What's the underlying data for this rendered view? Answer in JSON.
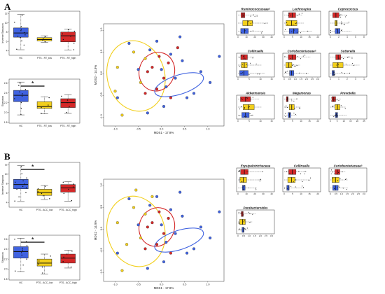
{
  "panels": [
    {
      "letter": "A",
      "groups": [
        "HC",
        "PTS - RT_low",
        "PTS - RT_high"
      ],
      "alpha_plots": [
        {
          "ylabel": "Inverse Simpson",
          "ticks": [
            "12",
            "10",
            "8",
            "6",
            "4"
          ],
          "ylim": [
            3,
            12.5
          ],
          "signif": false,
          "boxes": [
            {
              "q1": 6.9,
              "med": 7.8,
              "q3": 8.9,
              "lo": 4.2,
              "hi": 11.8,
              "color": "#3f62e0",
              "points": [
                4.3,
                5.2,
                6.1,
                6.8,
                7.1,
                7.4,
                7.9,
                8.3,
                8.6,
                9.2,
                10.1,
                11.6
              ]
            },
            {
              "q1": 6.1,
              "med": 6.4,
              "q3": 6.8,
              "lo": 5.8,
              "hi": 7.2,
              "color": "#f2cf1c",
              "points": [
                5.9,
                6.3,
                6.6,
                7.0
              ]
            },
            {
              "q1": 5.9,
              "med": 7.2,
              "q3": 8.0,
              "lo": 4.1,
              "hi": 8.6,
              "color": "#d42828",
              "points": [
                4.2,
                5.6,
                6.4,
                7.1,
                7.6,
                8.2,
                8.5
              ]
            }
          ]
        },
        {
          "ylabel": "Shannon",
          "ticks": [
            "2.6",
            "2.4",
            "2.2",
            "2.0",
            "1.8"
          ],
          "ylim": [
            1.78,
            2.68
          ],
          "signif": true,
          "signif_label": "*",
          "boxes": [
            {
              "q1": 2.22,
              "med": 2.35,
              "q3": 2.45,
              "lo": 1.95,
              "hi": 2.62,
              "color": "#3f62e0",
              "points": [
                1.96,
                2.08,
                2.2,
                2.28,
                2.33,
                2.38,
                2.42,
                2.47,
                2.55,
                2.6
              ]
            },
            {
              "q1": 2.08,
              "med": 2.12,
              "q3": 2.22,
              "lo": 1.97,
              "hi": 2.32,
              "color": "#f2cf1c",
              "points": [
                1.98,
                2.1,
                2.15,
                2.3
              ]
            },
            {
              "q1": 2.1,
              "med": 2.2,
              "q3": 2.28,
              "lo": 1.98,
              "hi": 2.36,
              "color": "#d42828",
              "points": [
                2.0,
                2.12,
                2.2,
                2.25,
                2.33
              ]
            }
          ]
        }
      ],
      "pcoa": {
        "xlabel": "MDS1 - 17.9%",
        "ylabel": "MDS2 - 14.9%",
        "xticks": [
          "-1.0",
          "-0.5",
          "0.0",
          "0.5",
          "1.0"
        ],
        "yticks": [
          "1.0",
          "0.5",
          "0.0",
          "-0.5",
          "-1.0"
        ],
        "xlim": [
          -1.25,
          1.35
        ],
        "ylim": [
          -1.2,
          1.15
        ],
        "blue": [
          [
            -0.95,
            -0.55
          ],
          [
            -0.7,
            0.7
          ],
          [
            -0.5,
            0.1
          ],
          [
            -0.25,
            0.55
          ],
          [
            -0.1,
            0.75
          ],
          [
            0.0,
            0.1
          ],
          [
            0.1,
            -0.3
          ],
          [
            0.2,
            0.45
          ],
          [
            0.3,
            -0.1
          ],
          [
            0.45,
            0.3
          ],
          [
            0.55,
            -0.55
          ],
          [
            0.7,
            -0.45
          ],
          [
            0.85,
            0.05
          ],
          [
            1.05,
            -0.2
          ],
          [
            1.25,
            0.4
          ],
          [
            0.4,
            0.85
          ],
          [
            -0.3,
            -0.9
          ],
          [
            0.05,
            -0.75
          ]
        ],
        "yellow": [
          [
            -0.95,
            0.15
          ],
          [
            -0.85,
            -0.95
          ],
          [
            -0.6,
            0.5
          ],
          [
            -0.35,
            0.35
          ],
          [
            -0.45,
            -0.2
          ],
          [
            -1.0,
            -0.4
          ]
        ],
        "red": [
          [
            -0.2,
            0.15
          ],
          [
            -0.1,
            -0.35
          ],
          [
            -0.3,
            0.05
          ],
          [
            0.15,
            0.25
          ],
          [
            -0.05,
            0.4
          ],
          [
            0.05,
            -0.1
          ],
          [
            0.2,
            -0.55
          ],
          [
            -0.35,
            -0.45
          ],
          [
            0.35,
            0.6
          ]
        ]
      },
      "taxa": [
        {
          "name": "Ruminococcaceaeᵃ",
          "ticks": [
            "0",
            "10",
            "20",
            "30",
            "40"
          ]
        },
        {
          "name": "Lachnospira",
          "ticks": [
            "0",
            "5",
            "10",
            "15",
            "20"
          ]
        },
        {
          "name": "Coprococcus",
          "ticks": [
            "0",
            "2",
            "4",
            "6",
            "8"
          ]
        },
        {
          "name": "Collinsella",
          "ticks": [
            "0",
            "5",
            "10",
            "15"
          ]
        },
        {
          "name": "Coriobacteriaceaeᵃ",
          "ticks": [
            "0",
            "0.5",
            "1.0",
            "1.5",
            "2.0",
            "2.5",
            "3.0"
          ]
        },
        {
          "name": "Sutterella",
          "ticks": [
            "0",
            "1",
            "2",
            "3",
            "4"
          ]
        },
        {
          "name": "Akkermansia",
          "ticks": [
            "0",
            "5",
            "10",
            "15"
          ]
        },
        {
          "name": "Megamonas",
          "ticks": [
            "0",
            "5",
            "10",
            "15",
            "20"
          ]
        },
        {
          "name": "Prevotella",
          "ticks": [
            "0",
            "5",
            "10",
            "15",
            "20",
            "25"
          ]
        }
      ]
    },
    {
      "letter": "B",
      "groups": [
        "HC",
        "PTS - ACC_low",
        "PTS - ACC_high"
      ],
      "alpha_plots": [
        {
          "ylabel": "Inverse Simpson",
          "ticks": [
            "12",
            "10",
            "8",
            "6",
            "4"
          ],
          "ylim": [
            3,
            12.5
          ],
          "signif": true,
          "signif_label": "*",
          "boxes": [
            {
              "q1": 6.9,
              "med": 7.8,
              "q3": 8.9,
              "lo": 4.2,
              "hi": 11.8,
              "color": "#3f62e0",
              "points": [
                4.3,
                5.2,
                6.1,
                6.8,
                7.1,
                7.4,
                7.9,
                8.3,
                8.6,
                9.2,
                10.1,
                11.6
              ]
            },
            {
              "q1": 5.5,
              "med": 6.1,
              "q3": 6.8,
              "lo": 4.6,
              "hi": 7.6,
              "color": "#f2cf1c",
              "points": [
                4.8,
                5.4,
                5.9,
                6.3,
                6.9,
                7.4
              ]
            },
            {
              "q1": 6.2,
              "med": 7.1,
              "q3": 7.8,
              "lo": 4.3,
              "hi": 8.4,
              "color": "#d42828",
              "points": [
                4.4,
                5.9,
                6.8,
                7.3,
                7.9,
                8.3
              ]
            }
          ]
        },
        {
          "ylabel": "Shannon",
          "ticks": [
            "2.6",
            "2.4",
            "2.2",
            "2.0",
            "1.8"
          ],
          "ylim": [
            1.78,
            2.68
          ],
          "signif": true,
          "signif_label": "*",
          "boxes": [
            {
              "q1": 2.22,
              "med": 2.35,
              "q3": 2.45,
              "lo": 1.95,
              "hi": 2.62,
              "color": "#3f62e0",
              "points": [
                1.96,
                2.08,
                2.2,
                2.28,
                2.33,
                2.38,
                2.42,
                2.47,
                2.55,
                2.6
              ]
            },
            {
              "q1": 2.06,
              "med": 2.12,
              "q3": 2.2,
              "lo": 1.9,
              "hi": 2.3,
              "color": "#f2cf1c",
              "points": [
                1.92,
                2.04,
                2.1,
                2.16,
                2.26
              ]
            },
            {
              "q1": 2.12,
              "med": 2.22,
              "q3": 2.3,
              "lo": 2.02,
              "hi": 2.38,
              "color": "#d42828",
              "points": [
                2.04,
                2.15,
                2.24,
                2.3,
                2.36
              ]
            }
          ]
        }
      ],
      "pcoa": {
        "xlabel": "MDS1 - 17.9%",
        "ylabel": "MDS2 - 14.9%",
        "xticks": [
          "-1.0",
          "-0.5",
          "0.0",
          "0.5",
          "1.0"
        ],
        "yticks": [
          "1.0",
          "0.5",
          "0.0",
          "-0.5",
          "-1.0"
        ],
        "xlim": [
          -1.25,
          1.35
        ],
        "ylim": [
          -1.2,
          1.15
        ],
        "blue": [
          [
            -0.95,
            -0.55
          ],
          [
            -0.7,
            0.7
          ],
          [
            -0.5,
            0.1
          ],
          [
            -0.25,
            0.55
          ],
          [
            -0.1,
            0.75
          ],
          [
            0.0,
            0.1
          ],
          [
            0.1,
            -0.3
          ],
          [
            0.2,
            0.45
          ],
          [
            0.3,
            -0.1
          ],
          [
            0.45,
            0.3
          ],
          [
            0.55,
            -0.55
          ],
          [
            0.7,
            -0.45
          ],
          [
            0.85,
            0.05
          ],
          [
            1.05,
            -0.2
          ],
          [
            1.25,
            0.4
          ],
          [
            0.4,
            0.85
          ],
          [
            -0.3,
            -0.9
          ],
          [
            0.05,
            -0.75
          ]
        ],
        "yellow": [
          [
            -0.95,
            0.15
          ],
          [
            -0.85,
            -0.95
          ],
          [
            -0.6,
            0.5
          ],
          [
            -0.35,
            0.35
          ],
          [
            -0.45,
            -0.2
          ],
          [
            -0.55,
            0.9
          ],
          [
            -0.2,
            0.75
          ],
          [
            -0.75,
            -0.35
          ]
        ],
        "red": [
          [
            -0.2,
            0.15
          ],
          [
            -0.1,
            -0.35
          ],
          [
            -0.3,
            0.05
          ],
          [
            0.15,
            0.25
          ],
          [
            -0.05,
            0.4
          ],
          [
            0.05,
            -0.1
          ],
          [
            0.2,
            -0.55
          ],
          [
            -0.35,
            -0.45
          ]
        ]
      },
      "taxa": [
        {
          "name": "Erysipelotrichaceae",
          "ticks": [
            "0",
            "10",
            "20",
            "30",
            "40"
          ]
        },
        {
          "name": "Collinsella",
          "ticks": [
            "0",
            "5",
            "10",
            "15",
            "20"
          ]
        },
        {
          "name": "Coriobacteriaceaeᵃ",
          "ticks": [
            "0",
            "0.5",
            "1.0",
            "1.5",
            "2.0",
            "2.5",
            "3.0"
          ]
        },
        {
          "name": "Parabacteroides",
          "ticks": [
            "0",
            "0.5",
            "1.0",
            "1.5",
            "2.0",
            "2.5",
            "3.0"
          ]
        }
      ]
    }
  ],
  "colors": {
    "hc": "#3f62e0",
    "low": "#f2cf1c",
    "high": "#d42828"
  }
}
